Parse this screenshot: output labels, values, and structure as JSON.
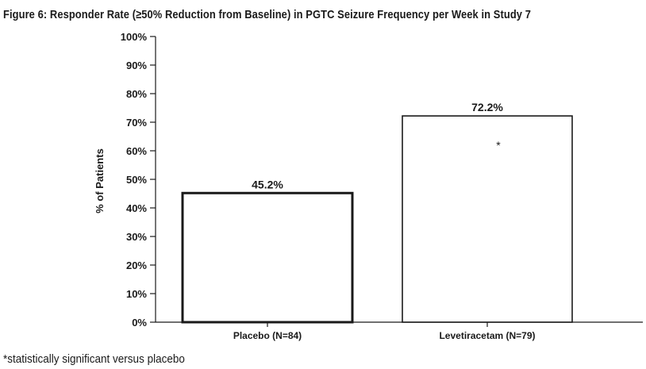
{
  "figure": {
    "title": "Figure 6:  Responder Rate (≥50% Reduction from Baseline) in PGTC Seizure Frequency per Week in Study 7",
    "footnote": "*statistically significant versus placebo"
  },
  "chart_data": {
    "type": "bar",
    "categories": [
      "Placebo (N=84)",
      "Levetiracetam (N=79)"
    ],
    "values": [
      45.2,
      72.2
    ],
    "data_labels": [
      "45.2%",
      "72.2%"
    ],
    "bar_annotations": [
      "",
      "*"
    ],
    "ylabel": "% of Patients",
    "xlabel": "",
    "ylim": [
      0,
      100
    ],
    "yticks": [
      0,
      10,
      20,
      30,
      40,
      50,
      60,
      70,
      80,
      90,
      100
    ],
    "ytick_labels": [
      "0%",
      "10%",
      "20%",
      "30%",
      "40%",
      "50%",
      "60%",
      "70%",
      "80%",
      "90%",
      "100%"
    ],
    "grid": false,
    "legend": "none",
    "bar_fill": "#ffffff",
    "bar_stroke": "#1a1a1a"
  }
}
